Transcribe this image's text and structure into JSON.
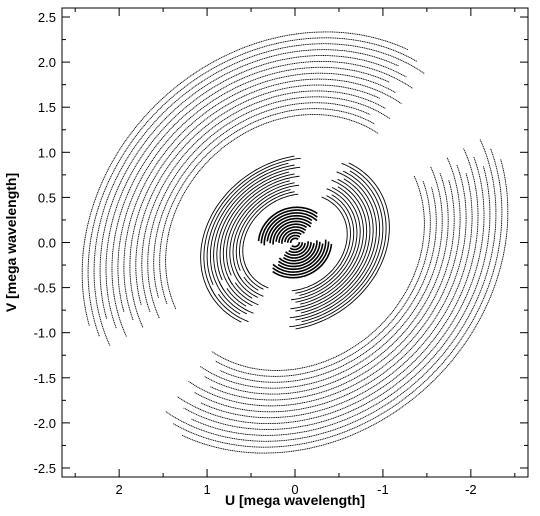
{
  "chart_data": {
    "type": "scatter",
    "title": "",
    "xlabel": "U [mega wavelength]",
    "ylabel": "V [mega wavelength]",
    "xlim": [
      2.65,
      -2.65
    ],
    "ylim": [
      -2.6,
      2.6
    ],
    "x_inverted": true,
    "x_ticks": [
      2,
      1,
      0,
      -1,
      -2
    ],
    "x_tick_labels": [
      "2",
      "1",
      "0",
      "-1",
      "-2"
    ],
    "y_ticks": [
      -2.5,
      -2.0,
      -1.5,
      -1.0,
      -0.5,
      0.0,
      0.5,
      1.0,
      1.5,
      2.0,
      2.5
    ],
    "y_tick_labels": [
      "-2.5",
      "-2.0",
      "-1.5",
      "-1.0",
      "-0.5",
      "0.0",
      "0.5",
      "1.0",
      "1.5",
      "2.0",
      "2.5"
    ],
    "grid": false,
    "legend": "none",
    "point_color": "#000000",
    "series": [
      {
        "description": "uv-coverage tracks, elliptical arcs symmetric about origin",
        "track_groups": [
          {
            "count": 15,
            "a_min": 1.55,
            "a_max": 2.55,
            "ratio": 0.86,
            "tilt_deg": -38,
            "arcs_deg": [
              [
                15,
                160
              ],
              [
                195,
                340
              ]
            ]
          },
          {
            "count": 14,
            "a_min": 0.62,
            "a_max": 1.12,
            "ratio": 0.82,
            "tilt_deg": -30,
            "arcs_deg": [
              [
                0,
                115
              ],
              [
                150,
                295
              ],
              [
                330,
                360
              ]
            ]
          },
          {
            "count": 12,
            "a_min": 0.05,
            "a_max": 0.42,
            "ratio": 0.92,
            "tilt_deg": -20,
            "arcs_deg": [
              [
                20,
                150
              ],
              [
                200,
                330
              ]
            ]
          }
        ]
      }
    ]
  }
}
